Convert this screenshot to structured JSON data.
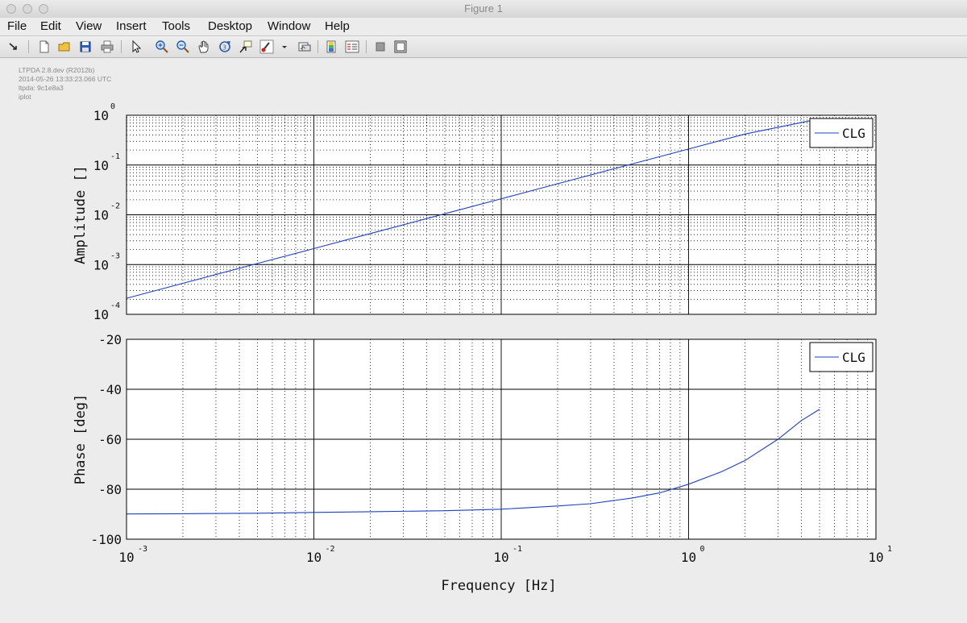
{
  "window": {
    "title": "Figure 1"
  },
  "menu": [
    "File",
    "Edit",
    "View",
    "Insert",
    "Tools",
    "Desktop",
    "Window",
    "Help"
  ],
  "toolbar": [
    "arrow-dock-icon",
    "new-figure-icon",
    "open-file-icon",
    "save-icon",
    "print-icon",
    "edit-plot-icon",
    "zoom-in-icon",
    "zoom-out-icon",
    "pan-icon",
    "rotate-3d-icon",
    "data-cursor-icon",
    "brush-icon",
    "brush-dropdown-icon",
    "link-plot-icon",
    "colorbar-icon",
    "legend-icon",
    "hide-plot-tools-icon",
    "show-plot-tools-icon"
  ],
  "meta": [
    "LTPDA 2.8.dev (R2012b)",
    "2014-05-26 13:33:23.066 UTC",
    "ltpda: 9c1e8a3",
    "iplot"
  ],
  "chart_data": [
    {
      "type": "line",
      "xscale": "log",
      "yscale": "log",
      "xlim": [
        0.001,
        10
      ],
      "ylim": [
        0.0001,
        1
      ],
      "xlabel": "",
      "ylabel": "Amplitude  []",
      "x_ticks": [
        {
          "base": "10",
          "exp": "-3"
        },
        {
          "base": "10",
          "exp": "-2"
        },
        {
          "base": "10",
          "exp": "-1"
        },
        {
          "base": "10",
          "exp": "0"
        },
        {
          "base": "10",
          "exp": "1"
        }
      ],
      "y_ticks": [
        {
          "base": "10",
          "exp": "0"
        },
        {
          "base": "10",
          "exp": "-1"
        },
        {
          "base": "10",
          "exp": "-2"
        },
        {
          "base": "10",
          "exp": "-3"
        },
        {
          "base": "10",
          "exp": "-4"
        }
      ],
      "grid": true,
      "legend_position": "top-right",
      "series": [
        {
          "name": "CLG",
          "color": "#1f3fbf",
          "x": [
            0.001,
            0.002,
            0.005,
            0.01,
            0.02,
            0.05,
            0.1,
            0.2,
            0.5,
            1,
            2,
            5
          ],
          "y": [
            0.00021,
            0.00042,
            0.00105,
            0.0021,
            0.0042,
            0.0105,
            0.021,
            0.042,
            0.105,
            0.21,
            0.42,
            0.85
          ]
        }
      ]
    },
    {
      "type": "line",
      "xscale": "log",
      "yscale": "linear",
      "xlim": [
        0.001,
        10
      ],
      "ylim": [
        -100,
        -20
      ],
      "xlabel": "Frequency  [Hz]",
      "ylabel": "Phase  [deg]",
      "x_ticks": [
        {
          "base": "10",
          "exp": "-3"
        },
        {
          "base": "10",
          "exp": "-2"
        },
        {
          "base": "10",
          "exp": "-1"
        },
        {
          "base": "10",
          "exp": "0"
        },
        {
          "base": "10",
          "exp": "1"
        }
      ],
      "y_ticks": [
        "-20",
        "-40",
        "-60",
        "-80",
        "-100"
      ],
      "grid": true,
      "legend_position": "top-right",
      "series": [
        {
          "name": "CLG",
          "color": "#1f3fbf",
          "x": [
            0.001,
            0.002,
            0.005,
            0.01,
            0.02,
            0.05,
            0.1,
            0.2,
            0.3,
            0.5,
            0.7,
            1,
            1.5,
            2,
            3,
            4,
            5
          ],
          "y": [
            -89.9,
            -89.8,
            -89.6,
            -89.3,
            -89.0,
            -88.6,
            -88.0,
            -86.7,
            -85.8,
            -83.5,
            -81.5,
            -78.0,
            -73.0,
            -68.5,
            -60.0,
            -52.5,
            -48.0
          ]
        }
      ]
    }
  ]
}
